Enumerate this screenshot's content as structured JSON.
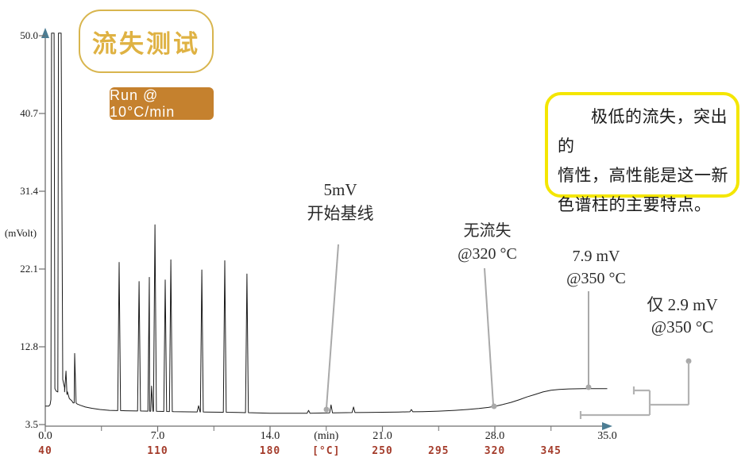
{
  "title_badge": {
    "label": "流失测试"
  },
  "run_badge": {
    "label": "Run @ 10°C/min"
  },
  "note_box": {
    "lines": [
      "极低的流失，突出的",
      "惰性，高性能是这一新",
      "色谱柱的主要特点。"
    ]
  },
  "annotations": {
    "baseline": {
      "line1": "5mV",
      "line2": "开始基线"
    },
    "no_bleed": {
      "line1": "无流失",
      "line2": "@320 °C"
    },
    "bleed_79": {
      "line1": "7.9 mV",
      "line2": "@350 °C"
    },
    "bleed_29": {
      "line1": "仅 2.9 mV",
      "line2": "@350 °C"
    }
  },
  "colors": {
    "gold_text": "#dfb243",
    "gold_border": "#d8b54e",
    "orange_badge": "#c5812e",
    "yellow_note_border": "#f4e600",
    "red_temp_label": "#a43c2b",
    "axis": "#6e6e6e",
    "arrow": "#4c7d93",
    "trace": "#1a1a1a",
    "annotation_gray": "#a9a9a9"
  },
  "chart_data": {
    "type": "line",
    "title": "流失测试 (column bleed test chromatogram)",
    "ylabel": "(mVolt)",
    "xlabel_time": "(min)",
    "xlabel_temp": "[°C]",
    "xlim": [
      0.0,
      35.0
    ],
    "ylim": [
      3.5,
      50.0
    ],
    "grid": false,
    "legend": false,
    "y_ticks": [
      50.0,
      40.7,
      31.4,
      22.1,
      12.8,
      3.5
    ],
    "x_major_ticks_min": [
      0.0,
      7.0,
      14.0,
      21.0,
      28.0
    ],
    "x_minor_ticks_min": [
      3.5,
      10.5,
      17.5,
      24.5,
      31.5
    ],
    "time_row_labels": [
      {
        "t": 0.0,
        "label": "0.0"
      },
      {
        "t": 7.0,
        "label": "7.0"
      },
      {
        "t": 14.0,
        "label": "14.0"
      },
      {
        "t": 17.5,
        "label": "(min)"
      },
      {
        "t": 21.0,
        "label": "21.0"
      },
      {
        "t": 28.0,
        "label": "28.0"
      },
      {
        "t": 35.0,
        "label": "35.0"
      }
    ],
    "temp_row_labels": [
      {
        "t": 0.0,
        "label": "40"
      },
      {
        "t": 7.0,
        "label": "110"
      },
      {
        "t": 14.0,
        "label": "180"
      },
      {
        "t": 17.5,
        "label": "[°C]"
      },
      {
        "t": 21.0,
        "label": "250"
      },
      {
        "t": 24.5,
        "label": "295"
      },
      {
        "t": 28.0,
        "label": "320"
      },
      {
        "t": 31.5,
        "label": "345"
      }
    ],
    "temp_program": "oven starts 40°C, ramp 10°C/min, 110°C@7min, 180°C@14min, 250°C@21min, 295°C@24.5min, 320°C@28min, 345°C@31.5min",
    "solvent": {
      "pre": [
        [
          0.0,
          5.7
        ],
        [
          0.22,
          5.7
        ],
        [
          0.3,
          5.9
        ],
        [
          0.35,
          6.5
        ]
      ],
      "clip1": [
        0.39,
        0.55
      ],
      "valley": [
        [
          0.6,
          7.8
        ],
        [
          0.68,
          7.5
        ],
        [
          0.78,
          7.4
        ]
      ],
      "clip2": [
        0.82,
        0.99
      ],
      "clip_top_mv": 50.3
    },
    "baseline_profile": [
      [
        1.09,
        8.9
      ],
      [
        1.2,
        7.9
      ],
      [
        1.35,
        7.1
      ],
      [
        1.5,
        6.6
      ],
      [
        1.65,
        6.35
      ],
      [
        1.8,
        6.1
      ],
      [
        2.0,
        5.95
      ],
      [
        2.2,
        5.8
      ],
      [
        2.5,
        5.6
      ],
      [
        2.9,
        5.45
      ],
      [
        3.4,
        5.3
      ],
      [
        4.0,
        5.2
      ],
      [
        5.0,
        5.15
      ],
      [
        6.5,
        5.1
      ],
      [
        8.0,
        5.05
      ],
      [
        10.0,
        5.0
      ],
      [
        12.0,
        4.95
      ],
      [
        14.0,
        4.85
      ],
      [
        16.0,
        4.85
      ],
      [
        18.0,
        4.9
      ],
      [
        20.0,
        4.95
      ],
      [
        22.0,
        5.0
      ],
      [
        23.5,
        5.05
      ],
      [
        24.5,
        5.1
      ],
      [
        25.5,
        5.2
      ],
      [
        26.3,
        5.3
      ],
      [
        27.0,
        5.42
      ],
      [
        27.6,
        5.55
      ],
      [
        28.0,
        5.68
      ],
      [
        28.5,
        5.9
      ],
      [
        29.0,
        6.15
      ],
      [
        29.5,
        6.45
      ],
      [
        30.0,
        6.8
      ],
      [
        30.5,
        7.1
      ],
      [
        31.0,
        7.4
      ],
      [
        31.5,
        7.6
      ],
      [
        32.0,
        7.7
      ],
      [
        32.6,
        7.76
      ],
      [
        33.5,
        7.8
      ],
      [
        35.0,
        7.8
      ]
    ],
    "peaks": [
      {
        "t": 1.29,
        "mv": 9.9
      },
      {
        "t": 1.83,
        "mv": 12.0
      },
      {
        "t": 4.6,
        "mv": 22.9
      },
      {
        "t": 5.84,
        "mv": 20.6
      },
      {
        "t": 6.48,
        "mv": 21.1
      },
      {
        "t": 6.62,
        "mv": 8.1
      },
      {
        "t": 6.83,
        "mv": 27.4
      },
      {
        "t": 7.47,
        "mv": 20.8
      },
      {
        "t": 7.82,
        "mv": 23.2
      },
      {
        "t": 9.55,
        "mv": 5.75
      },
      {
        "t": 9.75,
        "mv": 22.0
      },
      {
        "t": 11.18,
        "mv": 23.1
      },
      {
        "t": 12.56,
        "mv": 21.5
      },
      {
        "t": 16.4,
        "mv": 5.2
      },
      {
        "t": 17.8,
        "mv": 5.85
      },
      {
        "t": 19.2,
        "mv": 5.6
      },
      {
        "t": 22.8,
        "mv": 5.3
      }
    ],
    "key_values": {
      "starting_baseline_mv": 5.0,
      "bleed_at_320c_mv": 0.0,
      "level_at_350c_mv": 7.9,
      "net_bleed_at_350c_mv": 2.9
    }
  }
}
